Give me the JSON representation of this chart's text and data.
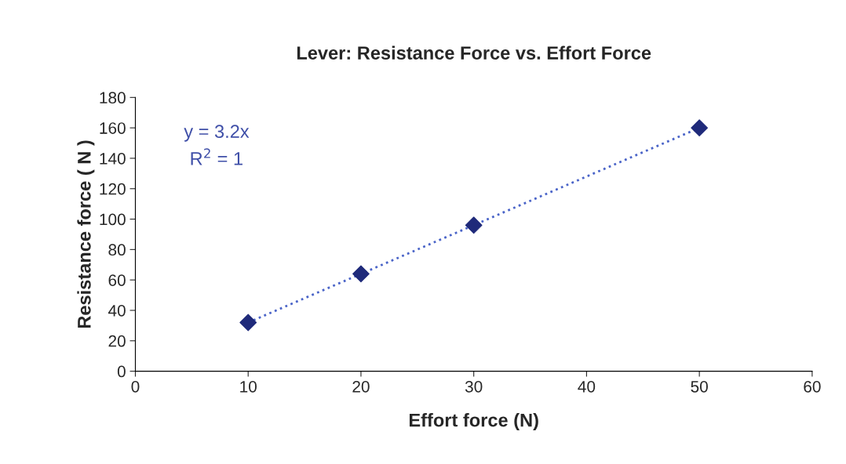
{
  "chart_data": {
    "type": "scatter",
    "title": "Lever: Resistance Force vs. Effort Force",
    "xlabel": "Effort force (N)",
    "ylabel": "Resistance force ( N )",
    "annotations": [
      "y = 3.2x",
      "R$^{2}$ = 1"
    ],
    "series": [
      {
        "color": "#1f2a7a",
        "marker": "diamond",
        "x": [
          10,
          20,
          30,
          50
        ],
        "values": [
          32,
          64,
          96,
          160
        ]
      },
      {
        "type": "line",
        "color": "#4a64c8",
        "line_style": "dotted",
        "marker": "none",
        "x": [
          10,
          50
        ],
        "values": [
          32,
          160
        ]
      }
    ],
    "xlim": [
      0,
      60
    ],
    "xticks": [
      0,
      10,
      20,
      30,
      40,
      50,
      60
    ],
    "ylim": [
      0,
      180
    ],
    "yticks": [
      0,
      20,
      40,
      60,
      80,
      100,
      120,
      140,
      160,
      180
    ],
    "grid": false,
    "legend": false
  }
}
